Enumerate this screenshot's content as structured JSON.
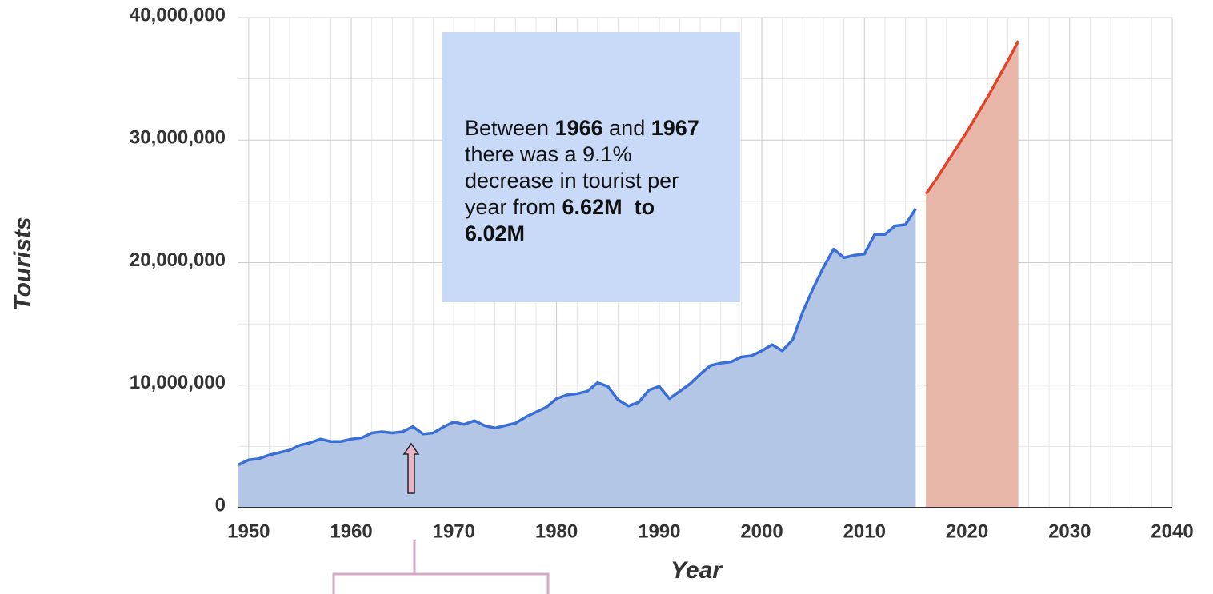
{
  "chart_data": {
    "type": "area",
    "y_axis_label": "Tourists",
    "x_axis_label": "Year",
    "xlim": [
      1949,
      2040
    ],
    "xticks": [
      1950,
      1960,
      1970,
      1980,
      1990,
      2000,
      2010,
      2020,
      2030,
      2040
    ],
    "ylim": [
      0,
      40000000
    ],
    "yticks": [
      {
        "value": 0,
        "label": "0"
      },
      {
        "value": 10000000,
        "label": "10,000,000"
      },
      {
        "value": 20000000,
        "label": "20,000,000"
      },
      {
        "value": 30000000,
        "label": "30,000,000"
      },
      {
        "value": 40000000,
        "label": "40,000,000"
      }
    ],
    "grid": true,
    "minor_grid": true,
    "series": [
      {
        "line_color": "#3a6fd6",
        "color": "#b4c6e6",
        "x": [
          1949,
          1950,
          1951,
          1952,
          1953,
          1954,
          1955,
          1956,
          1957,
          1958,
          1959,
          1960,
          1961,
          1962,
          1963,
          1964,
          1965,
          1966,
          1967,
          1968,
          1969,
          1970,
          1971,
          1972,
          1973,
          1974,
          1975,
          1976,
          1977,
          1978,
          1979,
          1980,
          1981,
          1982,
          1983,
          1984,
          1985,
          1986,
          1987,
          1988,
          1989,
          1990,
          1991,
          1992,
          1993,
          1994,
          1995,
          1996,
          1997,
          1998,
          1999,
          2000,
          2001,
          2002,
          2003,
          2004,
          2005,
          2006,
          2007,
          2008,
          2009,
          2010,
          2011,
          2012,
          2013,
          2014,
          2015
        ],
        "values": [
          3500000,
          3900000,
          4000000,
          4300000,
          4500000,
          4700000,
          5100000,
          5300000,
          5600000,
          5400000,
          5400000,
          5600000,
          5700000,
          6100000,
          6200000,
          6100000,
          6200000,
          6620000,
          6020000,
          6100000,
          6600000,
          7000000,
          6800000,
          7100000,
          6700000,
          6500000,
          6700000,
          6900000,
          7400000,
          7800000,
          8200000,
          8900000,
          9200000,
          9300000,
          9500000,
          10200000,
          9900000,
          8800000,
          8300000,
          8600000,
          9600000,
          9900000,
          8900000,
          9500000,
          10100000,
          10900000,
          11600000,
          11800000,
          11900000,
          12300000,
          12400000,
          12800000,
          13300000,
          12800000,
          13700000,
          16000000,
          17900000,
          19600000,
          21100000,
          20400000,
          20600000,
          20700000,
          22300000,
          22300000,
          23000000,
          23100000,
          24400000
        ]
      },
      {
        "line_color": "#e0452b",
        "color": "#e8b6a8",
        "x": [
          2016,
          2017,
          2018,
          2019,
          2020,
          2021,
          2022,
          2023,
          2024,
          2025
        ],
        "values": [
          25600000,
          26800000,
          28100000,
          29400000,
          30700000,
          32100000,
          33500000,
          35000000,
          36500000,
          38100000
        ]
      }
    ],
    "annotation": [
      {
        "text": "Between ",
        "bold": false
      },
      {
        "text": "1966",
        "bold": true
      },
      {
        "text": " and ",
        "bold": false
      },
      {
        "text": "1967",
        "bold": true
      },
      {
        "text": " there was a 9.1% decrease in tourist per year from ",
        "bold": false
      },
      {
        "text": "6.62M  to 6.02M",
        "bold": true
      }
    ]
  }
}
